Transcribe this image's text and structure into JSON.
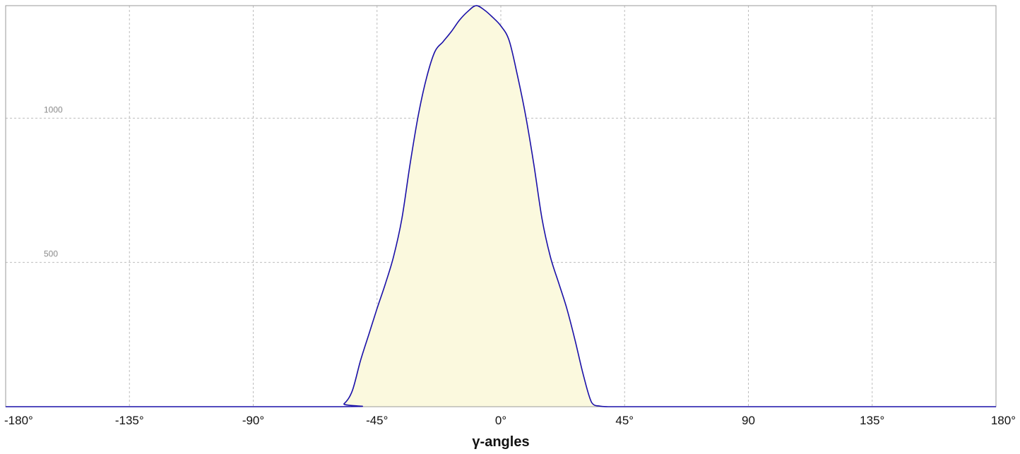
{
  "chart_data": {
    "type": "area",
    "title": "",
    "xlabel": "γ-angles",
    "ylabel": "",
    "xlim": [
      -180,
      180
    ],
    "ylim": [
      0,
      1390
    ],
    "x_ticks": [
      -180,
      -135,
      -90,
      -45,
      0,
      45,
      90,
      135,
      180
    ],
    "x_tick_labels": [
      "-180°",
      "-135°",
      "-90°",
      "-45°",
      "0°",
      "45°",
      "90",
      "135°",
      "180°"
    ],
    "y_ticks": [
      500,
      1000
    ],
    "y_tick_labels": [
      "500",
      "1000"
    ],
    "grid": true,
    "legend": "none",
    "colors": {
      "line": "#1a10a8",
      "fill": "#fbf9de",
      "grid": "#bdbdbd",
      "frame": "#9a9a9a"
    },
    "series": [
      {
        "x": [
          -180,
          -60,
          -57,
          -54,
          -51,
          -48,
          -45,
          -42,
          -39,
          -36,
          -33,
          -30,
          -27,
          -24,
          -21,
          -18,
          -15,
          -12,
          -9,
          -6,
          -3,
          0,
          3,
          6,
          9,
          12,
          15,
          18,
          21,
          24,
          27,
          30,
          33,
          36,
          39,
          42,
          45,
          48,
          51,
          54,
          57,
          60,
          180
        ],
        "y": [
          0,
          0,
          10,
          55,
          160,
          250,
          340,
          425,
          520,
          650,
          840,
          1010,
          1140,
          1230,
          1265,
          1300,
          1340,
          1370,
          1390,
          1375,
          1350,
          1320,
          1270,
          1150,
          1010,
          840,
          650,
          520,
          430,
          340,
          230,
          110,
          15,
          2,
          0,
          0,
          0,
          0,
          0,
          0,
          0,
          0,
          0
        ]
      }
    ]
  }
}
